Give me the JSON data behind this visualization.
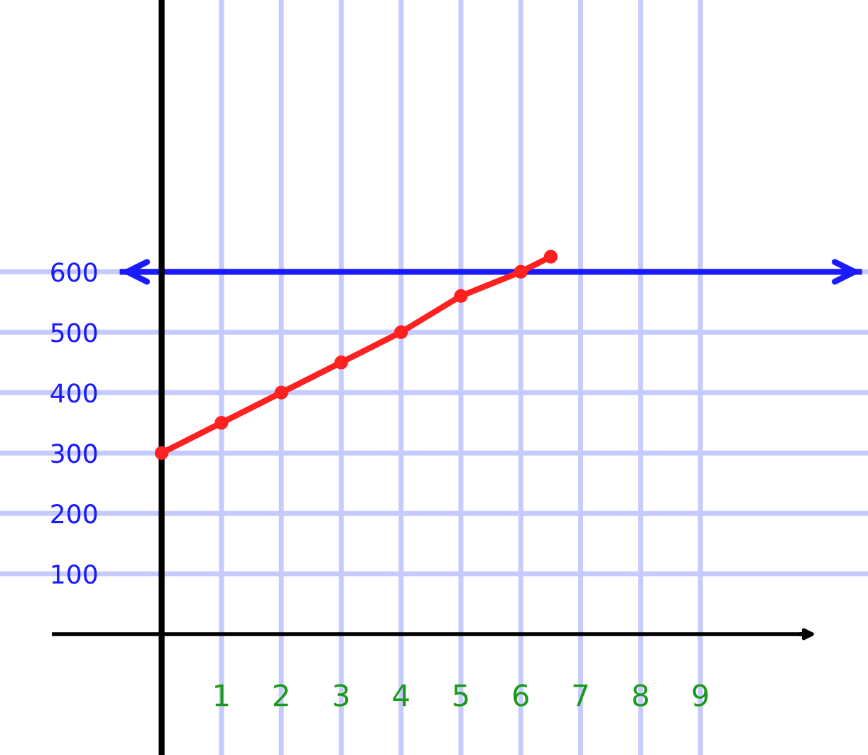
{
  "chart_data": {
    "type": "line",
    "x": [
      0,
      1,
      2,
      3,
      4,
      5,
      6,
      6.5
    ],
    "series": [
      {
        "color": "#ff2020",
        "values": [
          300,
          350,
          400,
          450,
          500,
          560,
          600,
          625
        ]
      }
    ],
    "marker": "circle",
    "line_style": "solid",
    "grid": true,
    "xlim": [
      -2.7,
      11.8
    ],
    "ylim": [
      -200,
      1050
    ],
    "xticks": [
      1,
      2,
      3,
      4,
      5,
      6,
      7,
      8,
      9
    ],
    "yticks": [
      100,
      200,
      300,
      400,
      500,
      600
    ],
    "ref_lines": [
      {
        "axis": "y",
        "value": 600,
        "color": "#1a1aff",
        "line_style": "solid"
      }
    ]
  }
}
